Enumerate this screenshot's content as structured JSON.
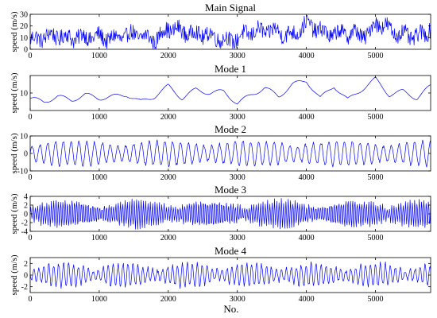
{
  "figure": {
    "xlabel": "No."
  },
  "chart_data": [
    {
      "type": "line",
      "title": "Main Signal",
      "ylabel": "speed (m/s)",
      "xlim": [
        0,
        5800
      ],
      "ylim": [
        0,
        30
      ],
      "x_ticks": [
        "0",
        "1000",
        "2000",
        "3000",
        "4000",
        "5000"
      ],
      "x_tick_values": [
        0,
        1000,
        2000,
        3000,
        4000,
        5000
      ],
      "y_ticks": [
        "0",
        "10",
        "20",
        "30"
      ],
      "y_tick_values": [
        0,
        10,
        20,
        30
      ],
      "series": [
        {
          "color": "#0000ff",
          "points_x": [
            0,
            300,
            600,
            900,
            1200,
            1500,
            1800,
            2000,
            2300,
            2600,
            2900,
            3200,
            3500,
            3800,
            4000,
            4300,
            4600,
            4900,
            5000,
            5300,
            5600,
            5800
          ],
          "points_y": [
            8,
            12,
            10,
            11,
            9,
            13,
            8,
            18,
            14,
            12,
            7,
            15,
            16,
            12,
            22,
            13,
            14,
            12,
            24,
            14,
            10,
            18
          ]
        }
      ]
    },
    {
      "type": "line",
      "title": "Mode 1",
      "ylabel": "speed (m/s)",
      "xlim": [
        0,
        5800
      ],
      "ylim": [
        0,
        20
      ],
      "x_ticks": [
        "0",
        "1000",
        "2000",
        "3000",
        "4000",
        "5000"
      ],
      "x_tick_values": [
        0,
        1000,
        2000,
        3000,
        4000,
        5000
      ],
      "y_ticks": [
        "10"
      ],
      "y_tick_values": [
        10
      ],
      "series": [
        {
          "color": "#0000ff",
          "points_x": [
            0,
            200,
            400,
            600,
            800,
            1000,
            1200,
            1400,
            1600,
            1800,
            2000,
            2200,
            2400,
            2600,
            2800,
            3000,
            3200,
            3400,
            3600,
            3800,
            4000,
            4200,
            4400,
            4600,
            4800,
            5000,
            5200,
            5400,
            5600,
            5800
          ],
          "points_y": [
            7,
            5,
            8,
            6,
            9,
            7,
            8,
            9,
            5,
            8,
            14,
            7,
            12,
            10,
            11,
            4,
            9,
            13,
            8,
            15,
            17,
            7,
            14,
            6,
            12,
            18,
            9,
            11,
            7,
            14
          ]
        }
      ]
    },
    {
      "type": "line",
      "title": "Mode 2",
      "ylabel": "speed (m/s)",
      "xlim": [
        0,
        5800
      ],
      "ylim": [
        -10,
        10
      ],
      "x_ticks": [
        "0",
        "1000",
        "2000",
        "3000",
        "4000",
        "5000"
      ],
      "x_tick_values": [
        0,
        1000,
        2000,
        3000,
        4000,
        5000
      ],
      "y_ticks": [
        "-10",
        "0",
        "10"
      ],
      "y_tick_values": [
        -10,
        0,
        10
      ],
      "series": [
        {
          "color": "#0000ff",
          "points_x": [
            0,
            5800
          ],
          "points_y": [
            0,
            0
          ]
        }
      ]
    },
    {
      "type": "line",
      "title": "Mode 3",
      "ylabel": "speed (m/s)",
      "xlim": [
        0,
        5800
      ],
      "ylim": [
        -4,
        4
      ],
      "x_ticks": [
        "0",
        "1000",
        "2000",
        "3000",
        "4000",
        "5000"
      ],
      "x_tick_values": [
        0,
        1000,
        2000,
        3000,
        4000,
        5000
      ],
      "y_ticks": [
        "-4",
        "-2",
        "0",
        "2",
        "4"
      ],
      "y_tick_values": [
        -4,
        -2,
        0,
        2,
        4
      ],
      "series": [
        {
          "color": "#0000ff",
          "points_x": [
            0,
            5800
          ],
          "points_y": [
            0,
            0
          ]
        }
      ]
    },
    {
      "type": "line",
      "title": "Mode 4",
      "ylabel": "speed (m/s)",
      "xlim": [
        0,
        5800
      ],
      "ylim": [
        -3,
        3
      ],
      "x_ticks": [
        "0",
        "1000",
        "2000",
        "3000",
        "4000",
        "5000"
      ],
      "x_tick_values": [
        0,
        1000,
        2000,
        3000,
        4000,
        5000
      ],
      "y_ticks": [
        "-2",
        "0",
        "2"
      ],
      "y_tick_values": [
        -2,
        0,
        2
      ],
      "series": [
        {
          "color": "#0000ff",
          "points_x": [
            0,
            5800
          ],
          "points_y": [
            0,
            0
          ]
        }
      ]
    }
  ]
}
